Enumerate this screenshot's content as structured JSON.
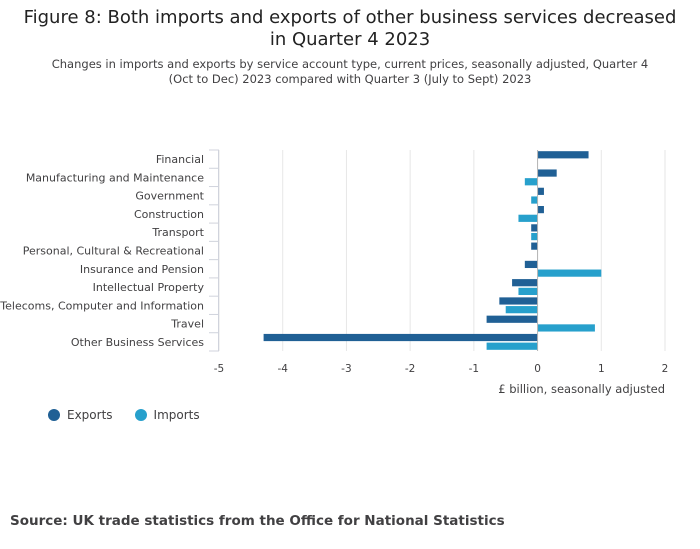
{
  "chart_data": {
    "type": "bar",
    "orientation": "horizontal",
    "title": "Figure 8: Both imports and exports of other business services decreased in Quarter 4 2023",
    "subtitle": "Changes in imports and exports by service account type, current prices, seasonally adjusted, Quarter 4 (Oct to Dec) 2023 compared with Quarter 3 (July to Sept) 2023",
    "xlabel": "£ billion, seasonally adjusted",
    "ylabel": "",
    "xlim": [
      -5,
      2
    ],
    "xticks": [
      -5,
      -4,
      -3,
      -2,
      -1,
      0,
      1,
      2
    ],
    "grid": true,
    "categories": [
      "Financial",
      "Manufacturing and Maintenance",
      "Government",
      "Construction",
      "Transport",
      "Personal, Cultural & Recreational",
      "Insurance and Pension",
      "Intellectual Property",
      "Telecoms, Computer and Information",
      "Travel",
      "Other Business Services"
    ],
    "series": [
      {
        "name": "Exports",
        "color": "#206095",
        "values": [
          0.8,
          0.3,
          0.1,
          0.1,
          -0.1,
          -0.1,
          -0.2,
          -0.4,
          -0.6,
          -0.8,
          -4.3
        ]
      },
      {
        "name": "Imports",
        "color": "#27a0cc",
        "values": [
          0.0,
          -0.2,
          -0.1,
          -0.3,
          -0.1,
          0.0,
          1.0,
          -0.3,
          -0.5,
          0.9,
          -0.8
        ]
      }
    ]
  },
  "source": "Source: UK trade statistics from the Office for National Statistics"
}
